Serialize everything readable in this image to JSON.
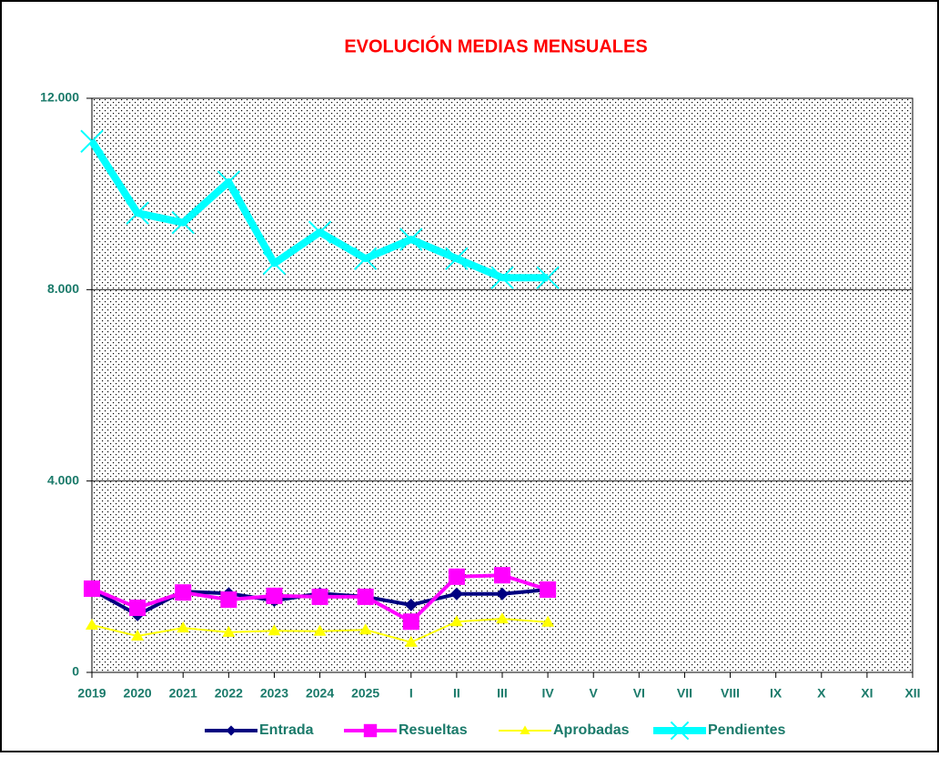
{
  "chart_data": {
    "type": "line",
    "title": "EVOLUCIÓN MEDIAS MENSUALES",
    "categories": [
      "2019",
      "2020",
      "2021",
      "2022",
      "2023",
      "2024",
      "2025",
      "I",
      "II",
      "III",
      "IV",
      "V",
      "VI",
      "VII",
      "VIII",
      "IX",
      "X",
      "XI",
      "XII"
    ],
    "series": [
      {
        "name": "Entrada",
        "color": "#000080",
        "marker": "diamond",
        "values": [
          1730,
          1200,
          1690,
          1650,
          1500,
          1650,
          1580,
          1410,
          1640,
          1640,
          1730,
          null,
          null,
          null,
          null,
          null,
          null,
          null,
          null
        ]
      },
      {
        "name": "Resueltas",
        "color": "#ff00ff",
        "marker": "square",
        "values": [
          1750,
          1350,
          1670,
          1520,
          1600,
          1580,
          1580,
          1060,
          2000,
          2030,
          1730,
          null,
          null,
          null,
          null,
          null,
          null,
          null,
          null
        ]
      },
      {
        "name": "Aprobadas",
        "color": "#ffff00",
        "marker": "triangle",
        "values": [
          990,
          760,
          930,
          840,
          870,
          860,
          890,
          630,
          1060,
          1120,
          1050,
          null,
          null,
          null,
          null,
          null,
          null,
          null,
          null
        ]
      },
      {
        "name": "Pendientes",
        "color": "#00ffff",
        "marker": "x",
        "values": [
          11100,
          9600,
          9400,
          10250,
          8550,
          9200,
          8650,
          9050,
          8650,
          8250,
          8250,
          null,
          null,
          null,
          null,
          null,
          null,
          null,
          null
        ]
      }
    ],
    "ylim": [
      0,
      12000
    ],
    "yticks": [
      0,
      {
        "value": 4000,
        "label": "4.000"
      },
      {
        "value": 8000,
        "label": "8.000"
      },
      {
        "value": 12000,
        "label": "12.000"
      }
    ],
    "grid": true,
    "legend": "bottom"
  }
}
